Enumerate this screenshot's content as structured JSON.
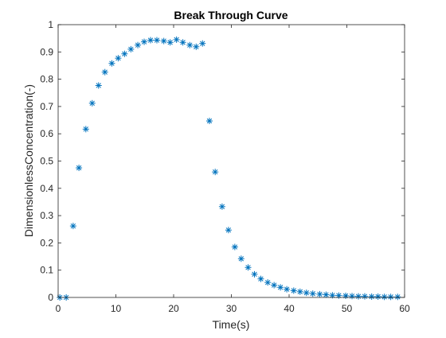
{
  "chart_data": {
    "type": "scatter",
    "title": "Break Through Curve",
    "xlabel": "Time(s)",
    "ylabel": "DimensionlessConcentration(-)",
    "xlim": [
      0,
      60
    ],
    "ylim": [
      0,
      1
    ],
    "xticks": [
      "0",
      "10",
      "20",
      "30",
      "40",
      "50",
      "60"
    ],
    "yticks": [
      "0",
      "0.1",
      "0.2",
      "0.3",
      "0.4",
      "0.5",
      "0.6",
      "0.7",
      "0.8",
      "0.9",
      "1"
    ],
    "grid": false,
    "marker": "asterisk",
    "marker_color": "#0072BD",
    "axis_color": "#262626",
    "series": [
      {
        "x": [
          0.3,
          1.4,
          2.6,
          3.6,
          4.8,
          5.9,
          7.0,
          8.1,
          9.3,
          10.4,
          11.5,
          12.6,
          13.8,
          14.9,
          16.0,
          17.1,
          18.3,
          19.4,
          20.5,
          21.6,
          22.8,
          23.9,
          25.0,
          26.2,
          27.2,
          28.4,
          29.5,
          30.6,
          31.7,
          32.9,
          34.0,
          35.1,
          36.3,
          37.4,
          38.5,
          39.6,
          40.8,
          41.9,
          43.0,
          44.1,
          45.3,
          46.4,
          47.5,
          48.6,
          49.8,
          50.9,
          52.0,
          53.1,
          54.3,
          55.4,
          56.5,
          57.6,
          58.8
        ],
        "y": [
          0.0,
          0.0,
          0.262,
          0.475,
          0.617,
          0.712,
          0.777,
          0.826,
          0.858,
          0.877,
          0.893,
          0.91,
          0.925,
          0.937,
          0.943,
          0.943,
          0.94,
          0.935,
          0.945,
          0.935,
          0.925,
          0.919,
          0.931,
          0.647,
          0.46,
          0.333,
          0.247,
          0.185,
          0.142,
          0.11,
          0.085,
          0.068,
          0.055,
          0.045,
          0.037,
          0.03,
          0.025,
          0.021,
          0.017,
          0.014,
          0.012,
          0.01,
          0.008,
          0.007,
          0.006,
          0.005,
          0.004,
          0.004,
          0.003,
          0.003,
          0.002,
          0.002,
          0.002
        ]
      }
    ]
  }
}
